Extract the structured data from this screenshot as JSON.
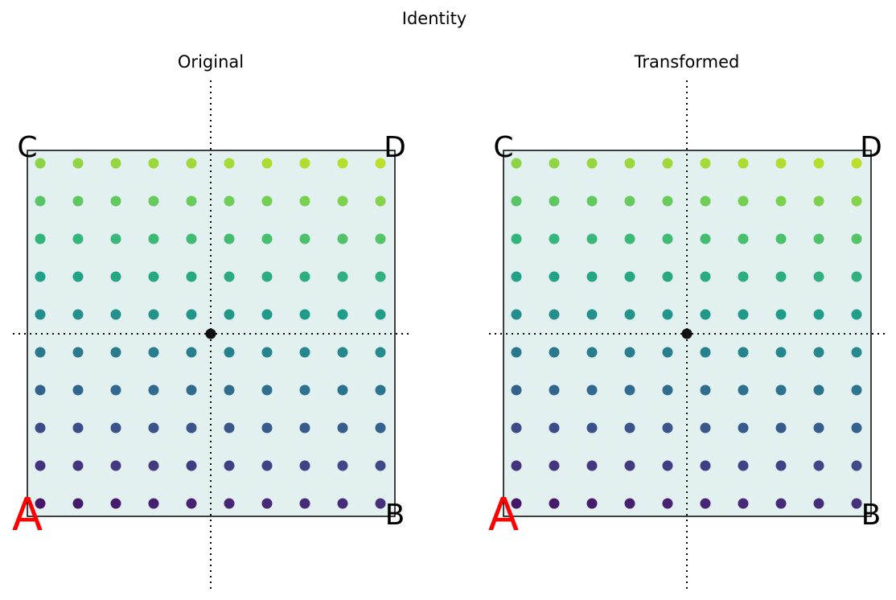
{
  "title": "Identity",
  "panels": [
    {
      "title": "Original",
      "corners": {
        "a": "A",
        "b": "B",
        "c": "C",
        "d": "D"
      }
    },
    {
      "title": "Transformed",
      "corners": {
        "a": "A",
        "b": "B",
        "c": "C",
        "d": "D"
      }
    }
  ]
}
